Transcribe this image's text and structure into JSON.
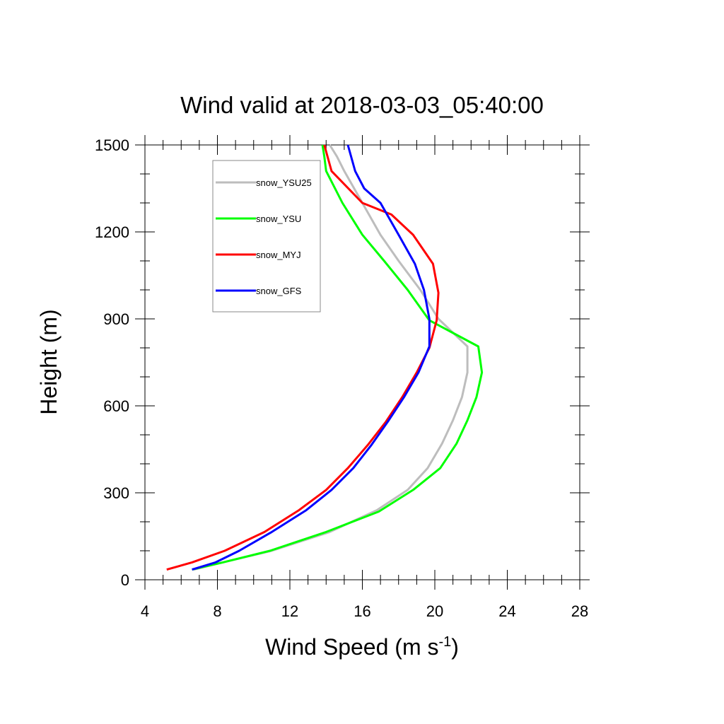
{
  "chart_data": {
    "type": "line",
    "title": "Wind valid at 2018-03-03_05:40:00",
    "xlabel": "Wind Speed (m s",
    "xlabel_sup": "-1",
    "xlabel_end": ")",
    "ylabel": "Height (m)",
    "xlim": [
      4,
      28
    ],
    "ylim": [
      0,
      1500
    ],
    "x_ticks": [
      4,
      8,
      12,
      16,
      20,
      24,
      28
    ],
    "y_ticks": [
      0,
      300,
      600,
      900,
      1200,
      1500
    ],
    "x_tick_labels": [
      "4",
      "8",
      "12",
      "16",
      "20",
      "24",
      "28"
    ],
    "y_tick_labels": [
      "0",
      "300",
      "600",
      "900",
      "1200",
      "1500"
    ],
    "grid": false,
    "legend_position": "top-left",
    "series": [
      {
        "name": "snow_YSU25",
        "color": "#bdbdbd",
        "points": [
          [
            6.7,
            35
          ],
          [
            8.3,
            60
          ],
          [
            11.0,
            100
          ],
          [
            14.2,
            165
          ],
          [
            16.8,
            240
          ],
          [
            18.5,
            310
          ],
          [
            19.6,
            385
          ],
          [
            20.4,
            470
          ],
          [
            21.0,
            550
          ],
          [
            21.5,
            630
          ],
          [
            21.8,
            715
          ],
          [
            21.8,
            805
          ],
          [
            20.2,
            900
          ],
          [
            19.2,
            1000
          ],
          [
            18.0,
            1100
          ],
          [
            17.0,
            1190
          ],
          [
            16.0,
            1300
          ],
          [
            15.0,
            1410
          ],
          [
            14.6,
            1460
          ],
          [
            14.2,
            1500
          ]
        ]
      },
      {
        "name": "snow_YSU",
        "color": "#00ff00",
        "points": [
          [
            6.6,
            35
          ],
          [
            8.3,
            60
          ],
          [
            10.9,
            100
          ],
          [
            14.0,
            165
          ],
          [
            16.9,
            235
          ],
          [
            18.8,
            310
          ],
          [
            20.3,
            385
          ],
          [
            21.2,
            470
          ],
          [
            21.8,
            550
          ],
          [
            22.3,
            630
          ],
          [
            22.6,
            715
          ],
          [
            22.4,
            805
          ],
          [
            19.7,
            895
          ],
          [
            18.5,
            1000
          ],
          [
            17.2,
            1100
          ],
          [
            16.0,
            1190
          ],
          [
            14.9,
            1300
          ],
          [
            14.0,
            1410
          ],
          [
            13.9,
            1460
          ],
          [
            13.8,
            1500
          ]
        ]
      },
      {
        "name": "snow_MYJ",
        "color": "#ff0000",
        "points": [
          [
            5.2,
            35
          ],
          [
            6.6,
            60
          ],
          [
            8.4,
            100
          ],
          [
            10.6,
            165
          ],
          [
            12.5,
            240
          ],
          [
            14.0,
            310
          ],
          [
            15.2,
            385
          ],
          [
            16.3,
            465
          ],
          [
            17.3,
            545
          ],
          [
            18.2,
            630
          ],
          [
            19.0,
            715
          ],
          [
            19.7,
            800
          ],
          [
            20.1,
            895
          ],
          [
            20.2,
            990
          ],
          [
            19.9,
            1090
          ],
          [
            18.8,
            1190
          ],
          [
            17.6,
            1260
          ],
          [
            16.0,
            1300
          ],
          [
            14.3,
            1410
          ],
          [
            13.9,
            1500
          ]
        ]
      },
      {
        "name": "snow_GFS",
        "color": "#0000ff",
        "points": [
          [
            6.6,
            35
          ],
          [
            7.9,
            60
          ],
          [
            9.2,
            100
          ],
          [
            11.0,
            165
          ],
          [
            12.9,
            240
          ],
          [
            14.3,
            310
          ],
          [
            15.5,
            385
          ],
          [
            16.5,
            465
          ],
          [
            17.4,
            545
          ],
          [
            18.3,
            630
          ],
          [
            19.1,
            715
          ],
          [
            19.7,
            805
          ],
          [
            19.7,
            900
          ],
          [
            19.4,
            1000
          ],
          [
            18.9,
            1090
          ],
          [
            18.0,
            1190
          ],
          [
            17.0,
            1300
          ],
          [
            16.1,
            1350
          ],
          [
            15.6,
            1410
          ],
          [
            15.2,
            1500
          ]
        ]
      }
    ]
  }
}
